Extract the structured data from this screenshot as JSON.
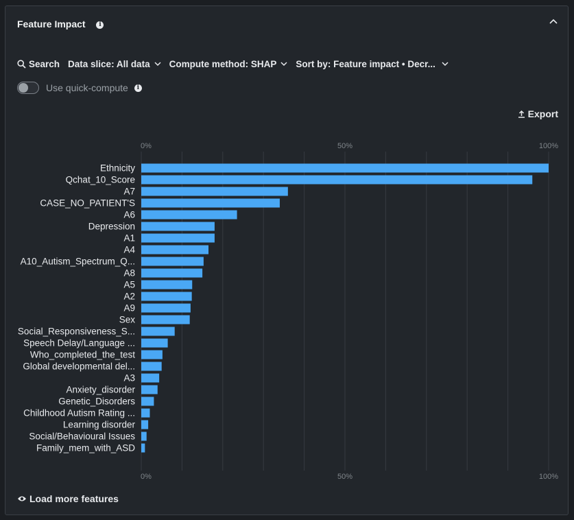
{
  "panel": {
    "title": "Feature Impact",
    "info_icon": "info-icon",
    "collapse_icon": "chevron-up-icon"
  },
  "toolbar": {
    "search_label": "Search",
    "data_slice_label": "Data slice: All data",
    "compute_method_label": "Compute method: SHAP",
    "sort_by_label": "Sort by: Feature impact • Decr..."
  },
  "quick_compute": {
    "label": "Use quick-compute",
    "enabled": false
  },
  "export_label": "Export",
  "load_more_label": "Load more features",
  "colors": {
    "bar": "#4aa8f5",
    "background": "#22262b",
    "grid": "#363b42",
    "text": "#e8eaed",
    "axis_text": "#80868b"
  },
  "chart_data": {
    "type": "bar",
    "orientation": "horizontal",
    "x_tick_labels": [
      "0%",
      "50%",
      "100%"
    ],
    "xlim": [
      0,
      100
    ],
    "categories": [
      "Ethnicity",
      "Qchat_10_Score",
      "A7",
      "CASE_NO_PATIENT'S",
      "A6",
      "Depression",
      "A1",
      "A4",
      "A10_Autism_Spectrum_Q...",
      "A8",
      "A5",
      "A2",
      "A9",
      "Sex",
      "Social_Responsiveness_S...",
      "Speech Delay/Language ...",
      "Who_completed_the_test",
      "Global developmental del...",
      "A3",
      "Anxiety_disorder",
      "Genetic_Disorders",
      "Childhood Autism Rating ...",
      "Learning disorder",
      "Social/Behavioural Issues",
      "Family_mem_with_ASD"
    ],
    "values": [
      100,
      96,
      36,
      34,
      23.5,
      18,
      18,
      16.5,
      15.3,
      15,
      12.5,
      12.4,
      12.1,
      11.9,
      8.2,
      6.5,
      5.2,
      5,
      4.4,
      4,
      3.1,
      2.1,
      1.7,
      1.3,
      0.9
    ]
  }
}
